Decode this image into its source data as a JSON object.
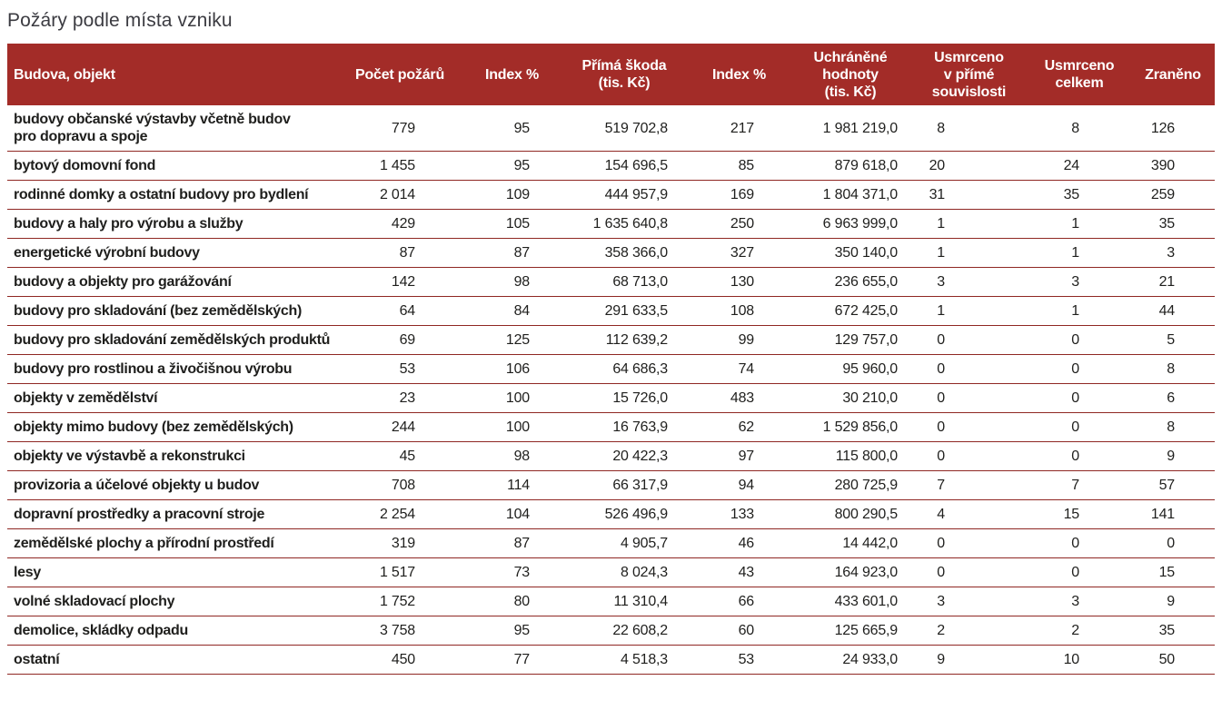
{
  "title": "Požáry podle místa vzniku",
  "theme": {
    "header_bg": "#a32c28",
    "header_text": "#ffffff",
    "row_line": "#8f2723",
    "body_text": "#1f1f1d",
    "title_text": "#3b3b41"
  },
  "chart_data": {
    "type": "table",
    "title": "Požáry podle místa vzniku",
    "columns": [
      "Budova, objekt",
      "Počet požárů",
      "Index %",
      "Přímá škoda\n(tis. Kč)",
      "Index %",
      "Uchráněné\nhodnoty\n(tis. Kč)",
      "Usmrceno\nv přímé\nsouvislosti",
      "Usmrceno\ncelkem",
      "Zraněno"
    ],
    "rows": [
      [
        "budovy občanské výstavby včetně budov\npro dopravu a spoje",
        "779",
        "95",
        "519 702,8",
        "217",
        "1 981 219,0",
        "8",
        "8",
        "126"
      ],
      [
        "bytový domovní fond",
        "1 455",
        "95",
        "154 696,5",
        "85",
        "879 618,0",
        "20",
        "24",
        "390"
      ],
      [
        "rodinné domky a ostatní budovy pro bydlení",
        "2 014",
        "109",
        "444 957,9",
        "169",
        "1 804 371,0",
        "31",
        "35",
        "259"
      ],
      [
        "budovy a haly pro výrobu a služby",
        "429",
        "105",
        "1 635 640,8",
        "250",
        "6 963 999,0",
        "1",
        "1",
        "35"
      ],
      [
        "energetické výrobní budovy",
        "87",
        "87",
        "358 366,0",
        "327",
        "350 140,0",
        "1",
        "1",
        "3"
      ],
      [
        "budovy a objekty pro garážování",
        "142",
        "98",
        "68 713,0",
        "130",
        "236 655,0",
        "3",
        "3",
        "21"
      ],
      [
        "budovy pro skladování (bez zemědělských)",
        "64",
        "84",
        "291 633,5",
        "108",
        "672 425,0",
        "1",
        "1",
        "44"
      ],
      [
        "budovy pro skladování zemědělských produktů",
        "69",
        "125",
        "112 639,2",
        "99",
        "129 757,0",
        "0",
        "0",
        "5"
      ],
      [
        "budovy pro rostlinou a živočišnou výrobu",
        "53",
        "106",
        "64 686,3",
        "74",
        "95 960,0",
        "0",
        "0",
        "8"
      ],
      [
        "objekty v zemědělství",
        "23",
        "100",
        "15 726,0",
        "483",
        "30 210,0",
        "0",
        "0",
        "6"
      ],
      [
        "objekty mimo budovy (bez zemědělských)",
        "244",
        "100",
        "16 763,9",
        "62",
        "1 529 856,0",
        "0",
        "0",
        "8"
      ],
      [
        "objekty ve výstavbě a rekonstrukci",
        "45",
        "98",
        "20 422,3",
        "97",
        "115 800,0",
        "0",
        "0",
        "9"
      ],
      [
        "provizoria a účelové objekty u budov",
        "708",
        "114",
        "66 317,9",
        "94",
        "280 725,9",
        "7",
        "7",
        "57"
      ],
      [
        "dopravní prostředky a pracovní stroje",
        "2 254",
        "104",
        "526 496,9",
        "133",
        "800 290,5",
        "4",
        "15",
        "141"
      ],
      [
        "zemědělské plochy a přírodní prostředí",
        "319",
        "87",
        "4 905,7",
        "46",
        "14 442,0",
        "0",
        "0",
        "0"
      ],
      [
        "lesy",
        "1 517",
        "73",
        "8 024,3",
        "43",
        "164 923,0",
        "0",
        "0",
        "15"
      ],
      [
        "volné skladovací plochy",
        "1 752",
        "80",
        "11 310,4",
        "66",
        "433 601,0",
        "3",
        "3",
        "9"
      ],
      [
        "demolice, skládky odpadu",
        "3 758",
        "95",
        "22 608,2",
        "60",
        "125 665,9",
        "2",
        "2",
        "35"
      ],
      [
        "ostatní",
        "450",
        "77",
        "4 518,3",
        "53",
        "24 933,0",
        "9",
        "10",
        "50"
      ]
    ]
  }
}
